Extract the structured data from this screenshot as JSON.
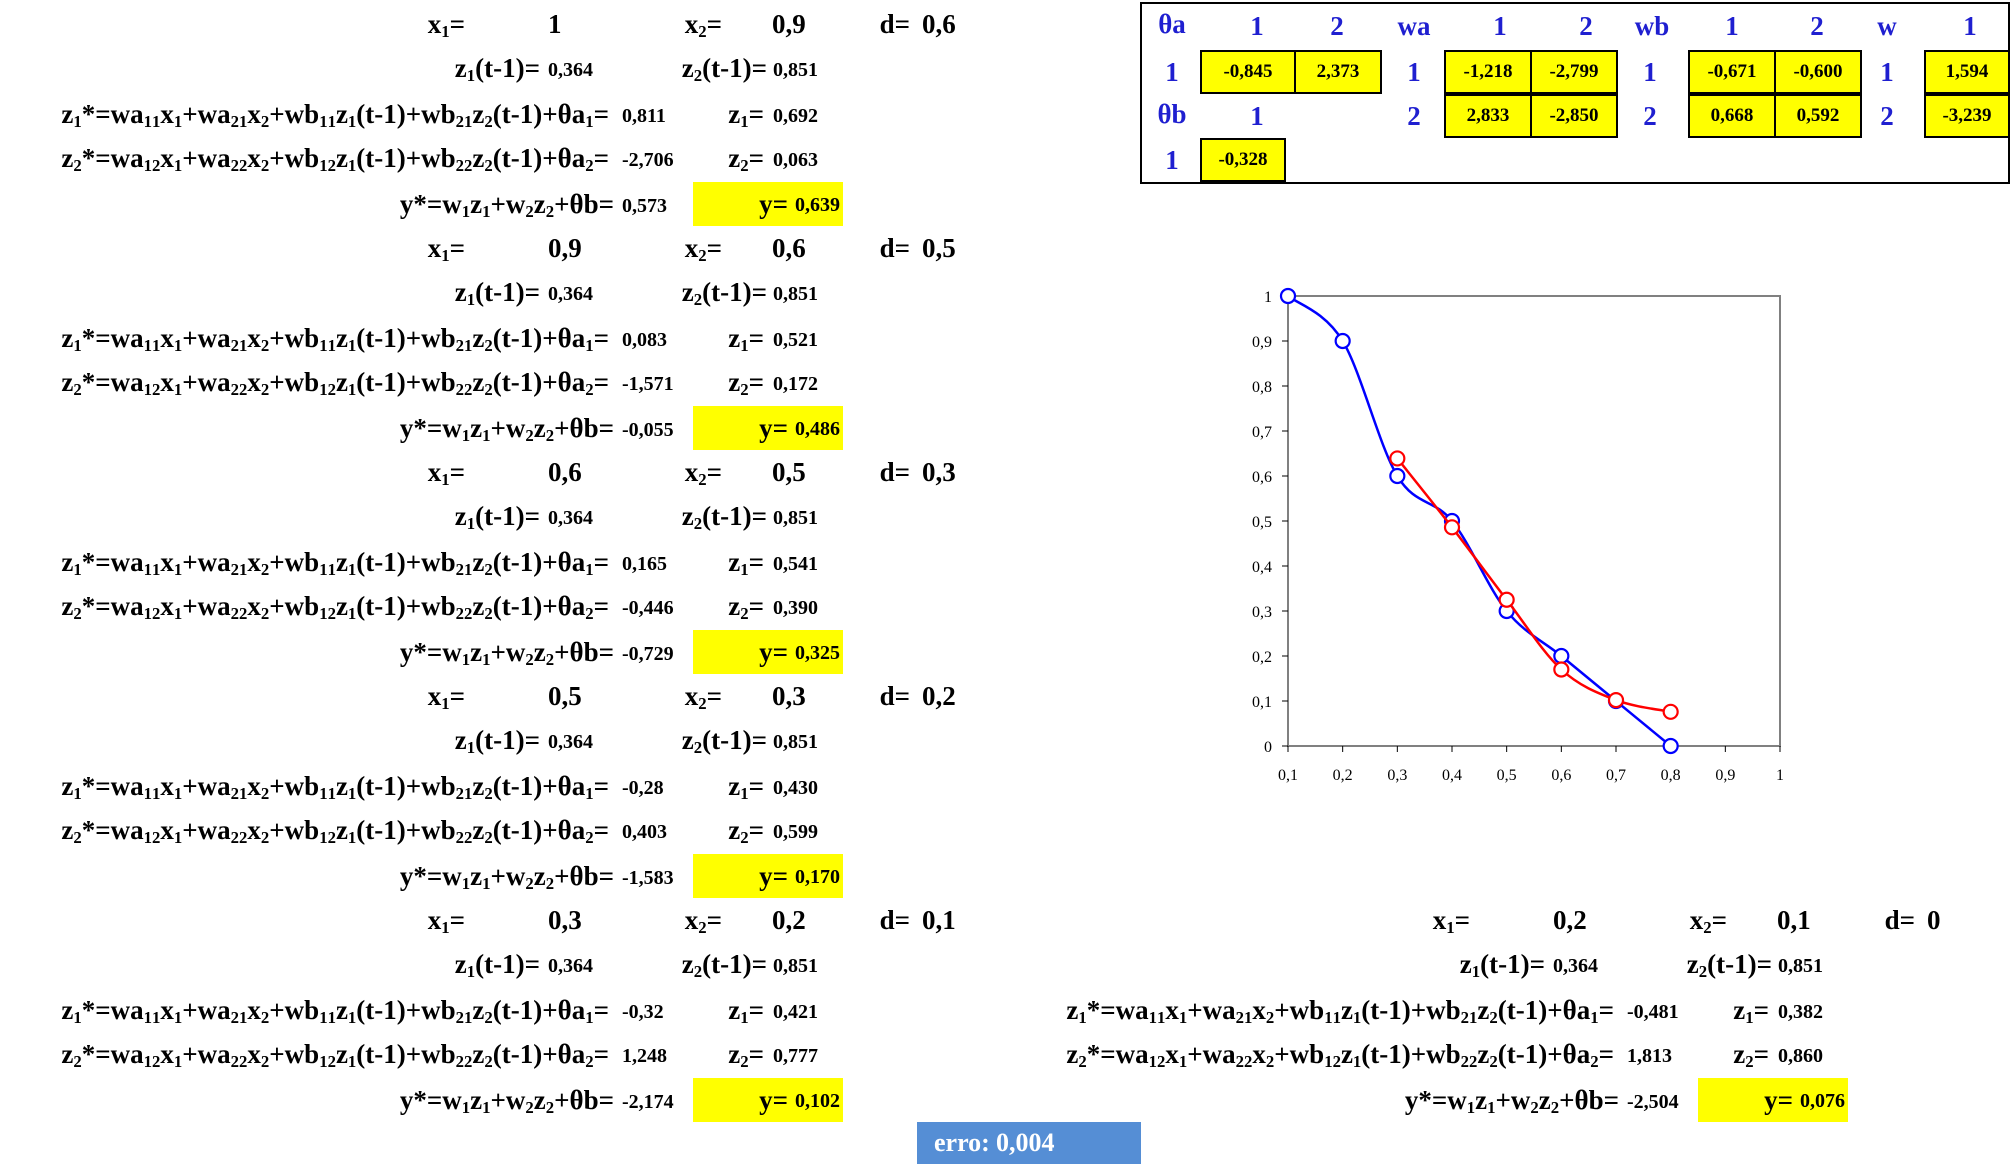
{
  "equations": {
    "z1_prev": "z₁(t-1)=",
    "z2_prev": "z₂(t-1)=",
    "z1_star": "z₁*=wa₁₁x₁+wa₂₁x₂+wb₁₁z₁(t-1)+wb₂₁z₂(t-1)+θa₁=",
    "z2_star": "z₂*=wa₁₂x₁+wa₂₂x₂+wb₁₂z₁(t-1)+wb₂₂z₂(t-1)+θa₂=",
    "y_star": "y*=w₁z₁+w₂z₂+θb=",
    "x1": "x₁=",
    "x2": "x₂=",
    "d": "d=",
    "z1": "z₁=",
    "z2": "z₂=",
    "y": "y="
  },
  "blocks": [
    {
      "x1": "1",
      "x2": "0,9",
      "d": "0,6",
      "z1_prev": "0,364",
      "z2_prev": "0,851",
      "z1_star": "0,811",
      "z1": "0,692",
      "z2_star": "-2,706",
      "z2": "0,063",
      "y_star": "0,573",
      "y": "0,639"
    },
    {
      "x1": "0,9",
      "x2": "0,6",
      "d": "0,5",
      "z1_prev": "0,364",
      "z2_prev": "0,851",
      "z1_star": "0,083",
      "z1": "0,521",
      "z2_star": "-1,571",
      "z2": "0,172",
      "y_star": "-0,055",
      "y": "0,486"
    },
    {
      "x1": "0,6",
      "x2": "0,5",
      "d": "0,3",
      "z1_prev": "0,364",
      "z2_prev": "0,851",
      "z1_star": "0,165",
      "z1": "0,541",
      "z2_star": "-0,446",
      "z2": "0,390",
      "y_star": "-0,729",
      "y": "0,325"
    },
    {
      "x1": "0,5",
      "x2": "0,3",
      "d": "0,2",
      "z1_prev": "0,364",
      "z2_prev": "0,851",
      "z1_star": "-0,28",
      "z1": "0,430",
      "z2_star": "0,403",
      "z2": "0,599",
      "y_star": "-1,583",
      "y": "0,170"
    },
    {
      "x1": "0,3",
      "x2": "0,2",
      "d": "0,1",
      "z1_prev": "0,364",
      "z2_prev": "0,851",
      "z1_star": "-0,32",
      "z1": "0,421",
      "z2_star": "1,248",
      "z2": "0,777",
      "y_star": "-2,174",
      "y": "0,102"
    },
    {
      "x1": "0,2",
      "x2": "0,1",
      "d": "0",
      "z1_prev": "0,364",
      "z2_prev": "0,851",
      "z1_star": "-0,481",
      "z1": "0,382",
      "z2_star": "1,813",
      "z2": "0,860",
      "y_star": "-2,504",
      "y": "0,076"
    }
  ],
  "params": {
    "theta_a": {
      "label": "θa",
      "col1": "1",
      "col2": "2",
      "row": "1",
      "v1": "-0,845",
      "v2": "2,373"
    },
    "theta_b": {
      "label": "θb",
      "col1": "1",
      "row": "1",
      "v1": "-0,328"
    },
    "wa": {
      "label": "wa",
      "col1": "1",
      "col2": "2",
      "row1": "1",
      "row2": "2",
      "v11": "-1,218",
      "v12": "-2,799",
      "v21": "2,833",
      "v22": "-2,850"
    },
    "wb": {
      "label": "wb",
      "col1": "1",
      "col2": "2",
      "row1": "1",
      "row2": "2",
      "v11": "-0,671",
      "v12": "-0,600",
      "v21": "0,668",
      "v22": "0,592"
    },
    "w": {
      "label": "w",
      "col1": "1",
      "row1": "1",
      "row2": "2",
      "v1": "1,594",
      "v2": "-3,239"
    }
  },
  "erro": {
    "label": "erro:",
    "value": "0,004"
  },
  "colors": {
    "highlight": "#ffff00",
    "header_blue": "#1f1fd0",
    "erro_bg": "#558ed5",
    "desired_series": "#0000ff",
    "output_series": "#ff0000"
  },
  "chart_data": {
    "type": "line",
    "xlim": [
      0.1,
      1
    ],
    "ylim": [
      0,
      1
    ],
    "x_ticks": [
      0.1,
      0.2,
      0.3,
      0.4,
      0.5,
      0.6,
      0.7,
      0.8,
      0.9,
      1
    ],
    "y_ticks": [
      0,
      0.1,
      0.2,
      0.3,
      0.4,
      0.5,
      0.6,
      0.7,
      0.8,
      0.9,
      1
    ],
    "x_tick_labels": [
      "0,1",
      "0,2",
      "0,3",
      "0,4",
      "0,5",
      "0,6",
      "0,7",
      "0,8",
      "0,9",
      "1"
    ],
    "y_tick_labels": [
      "0",
      "0,1",
      "0,2",
      "0,3",
      "0,4",
      "0,5",
      "0,6",
      "0,7",
      "0,8",
      "0,9",
      "1"
    ],
    "grid": false,
    "series": [
      {
        "color": "#0000ff",
        "x": [
          0.1,
          0.2,
          0.3,
          0.4,
          0.5,
          0.6,
          0.7,
          0.8
        ],
        "y": [
          1,
          0.9,
          0.6,
          0.5,
          0.3,
          0.2,
          0.1,
          0
        ]
      },
      {
        "color": "#ff0000",
        "x": [
          0.3,
          0.4,
          0.5,
          0.6,
          0.7,
          0.8
        ],
        "y": [
          0.639,
          0.486,
          0.325,
          0.17,
          0.102,
          0.076
        ]
      }
    ]
  }
}
